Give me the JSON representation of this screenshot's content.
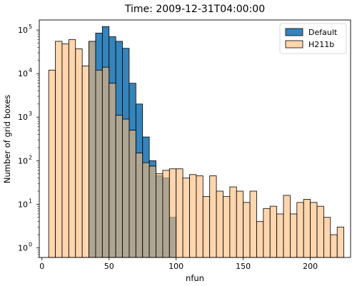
{
  "chart_data": {
    "type": "bar",
    "title": "Time: 2009-12-31T04:00:00",
    "xlabel": "nfun",
    "ylabel": "Number of grid boxes",
    "xlim": [
      -2,
      230
    ],
    "ylim": [
      0.6,
      170000
    ],
    "yscale": "log",
    "grid": false,
    "legend_position": "top-right",
    "bin_width": 5,
    "x_ticks": [
      0,
      50,
      100,
      150,
      200
    ],
    "y_ticks": [
      {
        "value": 1,
        "label": "10",
        "exp": "0"
      },
      {
        "value": 10,
        "label": "10",
        "exp": "1"
      },
      {
        "value": 100,
        "label": "10",
        "exp": "2"
      },
      {
        "value": 1000,
        "label": "10",
        "exp": "3"
      },
      {
        "value": 10000,
        "label": "10",
        "exp": "4"
      },
      {
        "value": 100000,
        "label": "10",
        "exp": "5"
      }
    ],
    "series": [
      {
        "name": "Default",
        "color": "#1f77b4",
        "alpha": 0.9,
        "bin_starts": [
          35,
          40,
          45,
          50,
          55,
          60,
          65,
          70,
          75,
          80,
          85,
          90,
          95
        ],
        "values": [
          55000,
          85000,
          120000,
          70000,
          55000,
          38000,
          6000,
          2000,
          350,
          100,
          45,
          40,
          5
        ]
      },
      {
        "name": "H211b",
        "color": "#ffbb78",
        "alpha": 0.6,
        "bin_starts": [
          5,
          10,
          15,
          20,
          25,
          30,
          35,
          40,
          45,
          50,
          55,
          60,
          65,
          70,
          75,
          80,
          85,
          90,
          95,
          100,
          105,
          110,
          115,
          120,
          125,
          130,
          135,
          140,
          145,
          150,
          155,
          160,
          165,
          170,
          175,
          180,
          185,
          190,
          195,
          200,
          205,
          210,
          215,
          220
        ],
        "values": [
          12000,
          55000,
          48000,
          60000,
          37000,
          15000,
          55000,
          12000,
          14000,
          6000,
          1100,
          900,
          500,
          150,
          90,
          75,
          50,
          60,
          65,
          65,
          40,
          48,
          45,
          15,
          45,
          20,
          15,
          25,
          20,
          11,
          20,
          4,
          8,
          9,
          6,
          16,
          6,
          11,
          13,
          11,
          9,
          5,
          2,
          3
        ]
      }
    ]
  }
}
